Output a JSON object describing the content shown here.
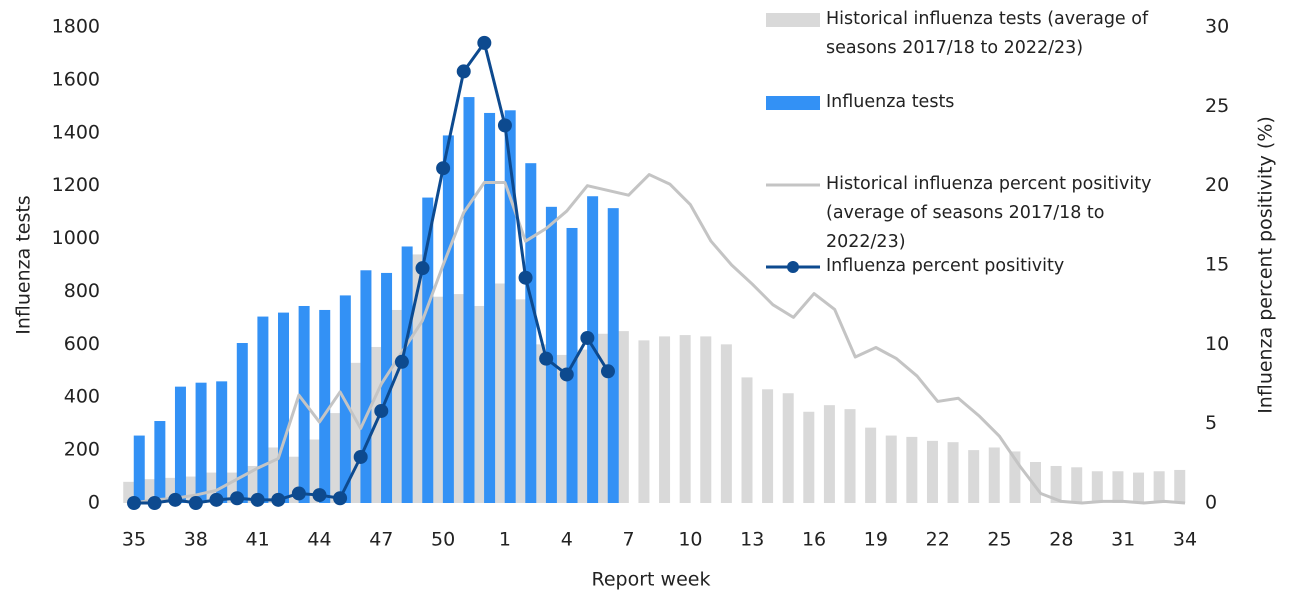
{
  "chart_data": {
    "type": "bar",
    "x_label": "Report week",
    "y_label": "Influenza tests",
    "y2_label": "Influenza percent positivity (%)",
    "categories": [
      "35",
      null,
      null,
      "38",
      null,
      null,
      "41",
      null,
      null,
      "44",
      null,
      null,
      "47",
      null,
      null,
      "50",
      null,
      null,
      "1",
      null,
      null,
      "4",
      null,
      null,
      "7",
      null,
      null,
      "10",
      null,
      null,
      "13",
      null,
      null,
      "16",
      null,
      null,
      "19",
      null,
      null,
      "22",
      null,
      null,
      "25",
      null,
      null,
      "28",
      null,
      null,
      "31",
      null,
      null,
      "34"
    ],
    "ylim": [
      0,
      1800
    ],
    "yticks": [
      0,
      200,
      400,
      600,
      800,
      1000,
      1200,
      1400,
      1600,
      1800
    ],
    "y2lim": [
      0,
      30
    ],
    "y2ticks": [
      0,
      5,
      10,
      15,
      20,
      25,
      30
    ],
    "legend": "top-right",
    "series": [
      {
        "name": "Historical influenza tests (average of seasons 2017/18 to 2022/23)",
        "type": "bar",
        "color": "#d9d9d9",
        "values": [
          80,
          90,
          95,
          100,
          115,
          115,
          140,
          210,
          175,
          240,
          340,
          530,
          590,
          730,
          940,
          780,
          790,
          745,
          830,
          770,
          600,
          560,
          580,
          640,
          650,
          615,
          630,
          635,
          630,
          600,
          475,
          430,
          415,
          345,
          370,
          355,
          285,
          255,
          250,
          235,
          230,
          200,
          210,
          195,
          155,
          140,
          135,
          120,
          120,
          115,
          120,
          125
        ]
      },
      {
        "name": "Influenza tests",
        "type": "bar",
        "color": "#3391f5",
        "values": [
          255,
          310,
          440,
          455,
          460,
          605,
          705,
          720,
          745,
          730,
          785,
          880,
          870,
          970,
          1155,
          1390,
          1535,
          1475,
          1485,
          1285,
          1120,
          1040,
          1160,
          1115,
          null,
          null,
          null,
          null,
          null,
          null,
          null,
          null,
          null,
          null,
          null,
          null,
          null,
          null,
          null,
          null,
          null,
          null,
          null,
          null,
          null,
          null,
          null,
          null,
          null,
          null,
          null,
          null
        ]
      },
      {
        "name": "Historical influenza percent positivity (average of seasons 2017/18 to 2022/23)",
        "type": "line",
        "axis": "y2",
        "color": "#c4c4c4",
        "values": [
          0,
          0.2,
          0.3,
          0.5,
          0.8,
          1.5,
          2.2,
          2.8,
          6.8,
          5.1,
          7.0,
          4.7,
          7.5,
          9.5,
          11.5,
          15,
          18.3,
          20.2,
          20.2,
          16.5,
          17.3,
          18.4,
          20,
          19.7,
          19.4,
          20.7,
          20.1,
          18.8,
          16.5,
          15,
          13.8,
          12.5,
          11.7,
          13.2,
          12.2,
          9.2,
          9.8,
          9.1,
          8.0,
          6.4,
          6.6,
          5.5,
          4.2,
          2.3,
          0.6,
          0.1,
          0,
          0.1,
          0.1,
          0,
          0.1,
          0
        ]
      },
      {
        "name": "Influenza percent positivity",
        "type": "line",
        "axis": "y2",
        "color": "#0d4a8f",
        "markers": true,
        "values": [
          0,
          0,
          0.2,
          0,
          0.2,
          0.3,
          0.2,
          0.2,
          0.6,
          0.5,
          0.3,
          2.9,
          5.8,
          8.9,
          14.8,
          21.1,
          27.2,
          29,
          23.8,
          14.2,
          9.1,
          8.1,
          10.4,
          8.3,
          null,
          null,
          null,
          null,
          null,
          null,
          null,
          null,
          null,
          null,
          null,
          null,
          null,
          null,
          null,
          null,
          null,
          null,
          null,
          null,
          null,
          null,
          null,
          null,
          null,
          null,
          null,
          null
        ]
      }
    ]
  }
}
